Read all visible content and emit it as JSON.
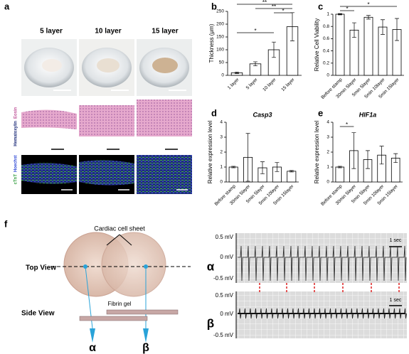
{
  "panel_a": {
    "label": "a",
    "columns": [
      "5 layer",
      "10 layer",
      "15 layer"
    ],
    "stain_he": [
      "Hematoxylin",
      "Eosin"
    ],
    "stain_if": [
      "cTnT",
      "Hoechst"
    ]
  },
  "chart_data": [
    {
      "type": "bar",
      "panel": "b",
      "ylabel": "Thickness (μm)",
      "categories": [
        "1 layer",
        "5 layer",
        "10 layer",
        "15 layer"
      ],
      "values": [
        10,
        45,
        100,
        190
      ],
      "errors": [
        3,
        8,
        30,
        55
      ],
      "ylim": [
        0,
        250
      ],
      "yticks": [
        0,
        50,
        100,
        150,
        200,
        250
      ],
      "color": "#ffffff",
      "annotations": [
        "**",
        "**",
        "*",
        "*"
      ]
    },
    {
      "type": "bar",
      "panel": "c",
      "ylabel": "Relative Cell Viability",
      "categories": [
        "Before stamp",
        "30min 5layer",
        "5min 5layer",
        "5min 10layer",
        "5min 15layer"
      ],
      "values": [
        1.0,
        0.74,
        0.95,
        0.79,
        0.75
      ],
      "errors": [
        0.01,
        0.12,
        0.03,
        0.12,
        0.18
      ],
      "ylim": [
        0,
        1.0
      ],
      "yticks": [
        0,
        0.2,
        0.4,
        0.6,
        0.8,
        1
      ],
      "color": "#ffffff",
      "annotations": [
        "*",
        "*"
      ]
    },
    {
      "type": "bar",
      "panel": "d",
      "title": "Casp3",
      "ylabel": "Relative expression level",
      "categories": [
        "Before stamp",
        "30min 5layer",
        "5min 5layer",
        "5min 10layer",
        "5min 15layer"
      ],
      "values": [
        1.0,
        1.65,
        0.95,
        1.0,
        0.72
      ],
      "errors": [
        0.05,
        1.6,
        0.4,
        0.3,
        0.05
      ],
      "ylim": [
        0,
        4
      ],
      "yticks": [
        0,
        1,
        2,
        3,
        4
      ],
      "color": "#ffffff"
    },
    {
      "type": "bar",
      "panel": "e",
      "title": "HIF1a",
      "ylabel": "Relative expression level",
      "categories": [
        "Before stamp",
        "30min 5layer",
        "5min 5layer",
        "5min 10layer",
        "5min 15layer"
      ],
      "values": [
        1.0,
        2.1,
        1.5,
        1.8,
        1.6
      ],
      "errors": [
        0.05,
        1.2,
        0.6,
        0.6,
        0.3
      ],
      "ylim": [
        0,
        4
      ],
      "yticks": [
        0,
        1,
        2,
        3,
        4
      ],
      "color": "#ffffff",
      "annotations": [
        "*"
      ]
    }
  ],
  "panel_f": {
    "label": "f",
    "sheet": "Cardiac cell sheet",
    "top_view": "Top View",
    "side_view": "Side View",
    "gel": "Fibrin gel",
    "alpha": "α",
    "beta": "β",
    "trace_labels": [
      "0.5 mV",
      "0 mV",
      "-0.5 mV"
    ],
    "scale": "1 sec"
  }
}
